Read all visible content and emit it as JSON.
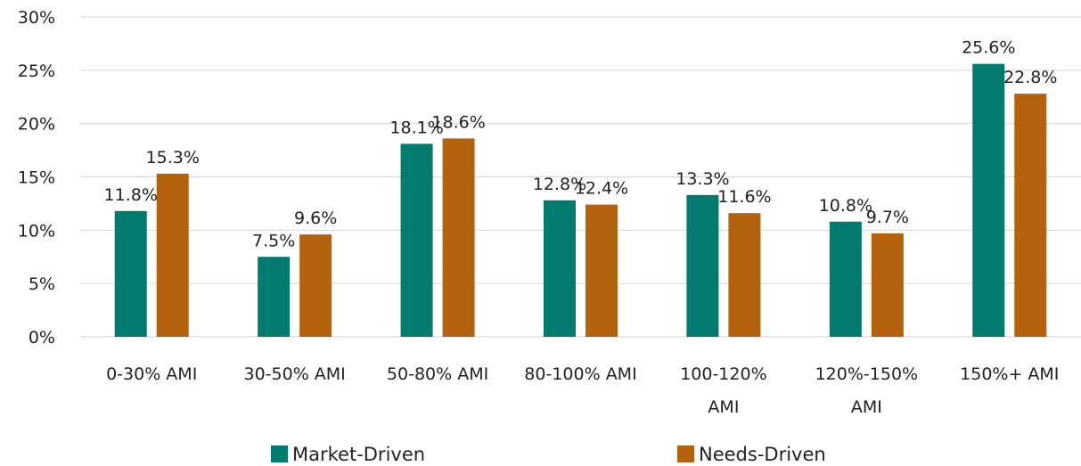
{
  "chart_data": {
    "type": "bar",
    "categories": [
      [
        "0-30% AMI"
      ],
      [
        "30-50% AMI"
      ],
      [
        "50-80% AMI"
      ],
      [
        "80-100% AMI"
      ],
      [
        "100-120%",
        "AMI"
      ],
      [
        "120%-150%",
        "AMI"
      ],
      [
        "150%+ AMI"
      ]
    ],
    "series": [
      {
        "name": "Market-Driven",
        "color": "#007B6E",
        "values": [
          11.8,
          7.5,
          18.1,
          12.8,
          13.3,
          10.8,
          25.6
        ],
        "labels": [
          "11.8%",
          "7.5%",
          "18.1%",
          "12.8%",
          "13.3%",
          "10.8%",
          "25.6%"
        ]
      },
      {
        "name": "Needs-Driven",
        "color": "#B5620F",
        "values": [
          15.3,
          9.6,
          18.6,
          12.4,
          11.6,
          9.7,
          22.8
        ],
        "labels": [
          "15.3%",
          "9.6%",
          "18.6%",
          "12.4%",
          "11.6%",
          "9.7%",
          "22.8%"
        ]
      }
    ],
    "ylim": [
      0,
      30
    ],
    "yticks": [
      0,
      5,
      10,
      15,
      20,
      25,
      30
    ],
    "ytick_labels": [
      "0%",
      "5%",
      "10%",
      "15%",
      "20%",
      "25%",
      "30%"
    ],
    "grid": true,
    "legend_position": "bottom",
    "gridline_color": "#D9D9D9"
  }
}
